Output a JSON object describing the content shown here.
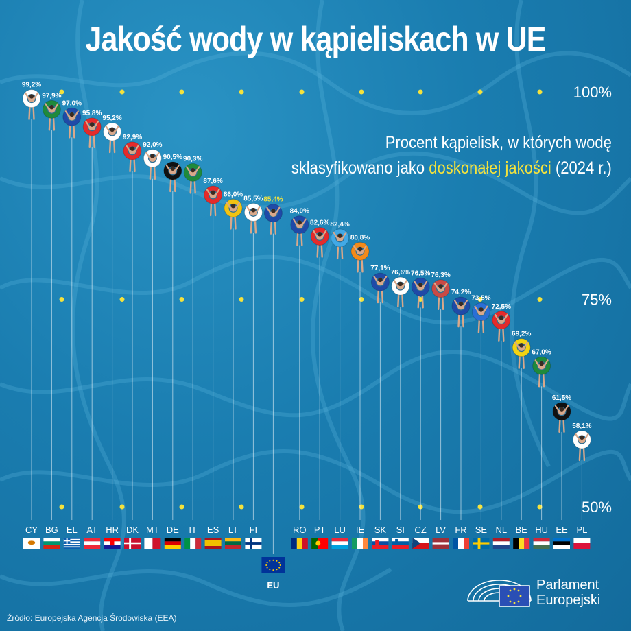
{
  "title": "Jakość wody w kąpieliskach w UE",
  "subtitle": {
    "line1": "Procent kąpielisk, w których wodę",
    "line2_pre": "sklasyfikowano jako ",
    "line2_hl": "doskonałej jakości",
    "line2_post": " (2024 r.)"
  },
  "source": "Źródło: Europejska Agencja Środowiska (EEA)",
  "logo": {
    "line1": "Parlament",
    "line2": "Europejski"
  },
  "colors": {
    "background": "#1b7fb0",
    "highlight": "#f4e23d",
    "dot": "#f4e23d"
  },
  "chart_data": {
    "type": "scatter",
    "ylim": [
      50,
      100
    ],
    "y_ticks": [
      "100%",
      "75%",
      "50%"
    ],
    "y_tick_values": [
      100,
      75,
      50
    ],
    "points": [
      {
        "code": "CY",
        "label": "99,2%",
        "value": 99.2,
        "ring": "#ffffff",
        "flag": "cy"
      },
      {
        "code": "BG",
        "label": "97,9%",
        "value": 97.9,
        "ring": "#1f8a3b",
        "flag": "bg"
      },
      {
        "code": "EL",
        "label": "97,0%",
        "value": 97.0,
        "ring": "#1f4aa8",
        "flag": "el"
      },
      {
        "code": "AT",
        "label": "95,8%",
        "value": 95.8,
        "ring": "#e42b2b",
        "flag": "at"
      },
      {
        "code": "HR",
        "label": "95,2%",
        "value": 95.2,
        "ring": "#ffffff",
        "flag": "hr"
      },
      {
        "code": "DK",
        "label": "92,9%",
        "value": 92.9,
        "ring": "#e42b2b",
        "flag": "dk"
      },
      {
        "code": "MT",
        "label": "92,0%",
        "value": 92.0,
        "ring": "#ffffff",
        "flag": "mt"
      },
      {
        "code": "DE",
        "label": "90,5%",
        "value": 90.5,
        "ring": "#111111",
        "flag": "de"
      },
      {
        "code": "IT",
        "label": "90,3%",
        "value": 90.3,
        "ring": "#1f8a3b",
        "flag": "it"
      },
      {
        "code": "ES",
        "label": "87,6%",
        "value": 87.6,
        "ring": "#e42b2b",
        "flag": "es"
      },
      {
        "code": "LT",
        "label": "86,0%",
        "value": 86.0,
        "ring": "#f2c313",
        "flag": "lt"
      },
      {
        "code": "FI",
        "label": "85,5%",
        "value": 85.5,
        "ring": "#ffffff",
        "flag": "fi"
      },
      {
        "code": "EU",
        "label": "85,4%",
        "value": 85.4,
        "ring": "#1f4aa8",
        "flag": "eu",
        "highlight": true
      },
      {
        "code": "RO",
        "label": "84,0%",
        "value": 84.0,
        "ring": "#1f4aa8",
        "flag": "ro"
      },
      {
        "code": "PT",
        "label": "82,6%",
        "value": 82.6,
        "ring": "#e42b2b",
        "flag": "pt"
      },
      {
        "code": "LU",
        "label": "82,4%",
        "value": 82.4,
        "ring": "#41a9e6",
        "flag": "lu"
      },
      {
        "code": "IE",
        "label": "80,8%",
        "value": 80.8,
        "ring": "#f28a1a",
        "flag": "ie"
      },
      {
        "code": "SK",
        "label": "77,1%",
        "value": 77.1,
        "ring": "#1f4aa8",
        "flag": "sk"
      },
      {
        "code": "SI",
        "label": "76,6%",
        "value": 76.6,
        "ring": "#ffffff",
        "flag": "si"
      },
      {
        "code": "CZ",
        "label": "76,5%",
        "value": 76.5,
        "ring": "#1f4aa8",
        "flag": "cz"
      },
      {
        "code": "LV",
        "label": "76,3%",
        "value": 76.3,
        "ring": "#c94a45",
        "flag": "lv"
      },
      {
        "code": "FR",
        "label": "74,2%",
        "value": 74.2,
        "ring": "#1f4aa8",
        "flag": "fr"
      },
      {
        "code": "SE",
        "label": "73,5%",
        "value": 73.5,
        "ring": "#2a6fd6",
        "flag": "se"
      },
      {
        "code": "NL",
        "label": "72,5%",
        "value": 72.5,
        "ring": "#e42b2b",
        "flag": "nl"
      },
      {
        "code": "BE",
        "label": "69,2%",
        "value": 69.2,
        "ring": "#f2d313",
        "flag": "be"
      },
      {
        "code": "HU",
        "label": "67,0%",
        "value": 67.0,
        "ring": "#1f8a3b",
        "flag": "hu"
      },
      {
        "code": "EE",
        "label": "61,5%",
        "value": 61.5,
        "ring": "#111111",
        "flag": "ee"
      },
      {
        "code": "PL",
        "label": "58,1%",
        "value": 58.1,
        "ring": "#ffffff",
        "flag": "pl"
      }
    ]
  }
}
